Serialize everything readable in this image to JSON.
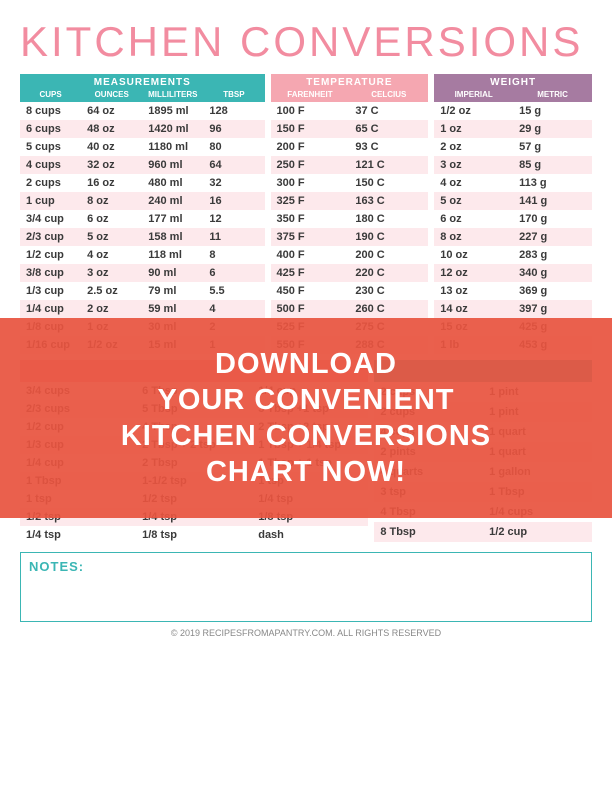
{
  "colors": {
    "title": "#f28ca0",
    "stripe": "#fde9ec",
    "meas_hdr": "#3bb6b4",
    "temp_hdr": "#f5a7b1",
    "wt_hdr": "#a67ba1",
    "overlay": "#e8543f",
    "overlay_alpha": "rgba(232,84,63,0.93)",
    "notes_border": "#3bb6b4",
    "notes_label": "#3bb6b4",
    "copyright": "#777777",
    "text": "#3a3a3a"
  },
  "title": "KITCHEN CONVERSIONS",
  "measurements": {
    "header": "MEASUREMENTS",
    "cols": [
      "CUPS",
      "OUNCES",
      "MILLILITERS",
      "TBSP"
    ],
    "rows": [
      [
        "8 cups",
        "64 oz",
        "1895 ml",
        "128"
      ],
      [
        "6 cups",
        "48 oz",
        "1420 ml",
        "96"
      ],
      [
        "5 cups",
        "40 oz",
        "1180 ml",
        "80"
      ],
      [
        "4 cups",
        "32 oz",
        "960 ml",
        "64"
      ],
      [
        "2 cups",
        "16 oz",
        "480 ml",
        "32"
      ],
      [
        "1 cup",
        "8 oz",
        "240 ml",
        "16"
      ],
      [
        "3/4 cup",
        "6 oz",
        "177 ml",
        "12"
      ],
      [
        "2/3 cup",
        "5 oz",
        "158 ml",
        "11"
      ],
      [
        "1/2 cup",
        "4 oz",
        "118 ml",
        "8"
      ],
      [
        "3/8 cup",
        "3 oz",
        "90 ml",
        "6"
      ],
      [
        "1/3 cup",
        "2.5 oz",
        "79 ml",
        "5.5"
      ],
      [
        "1/4 cup",
        "2 oz",
        "59 ml",
        "4"
      ],
      [
        "1/8 cup",
        "1 oz",
        "30 ml",
        "2"
      ],
      [
        "1/16 cup",
        "1/2 oz",
        "15 ml",
        "1"
      ]
    ]
  },
  "temperature": {
    "header": "TEMPERATURE",
    "cols": [
      "FARENHEIT",
      "CELCIUS"
    ],
    "rows": [
      [
        "100 F",
        "37 C"
      ],
      [
        "150 F",
        "65 C"
      ],
      [
        "200 F",
        "93 C"
      ],
      [
        "250 F",
        "121 C"
      ],
      [
        "300 F",
        "150 C"
      ],
      [
        "325 F",
        "163 C"
      ],
      [
        "350 F",
        "180 C"
      ],
      [
        "375 F",
        "190 C"
      ],
      [
        "400 F",
        "200 C"
      ],
      [
        "425 F",
        "220 C"
      ],
      [
        "450 F",
        "230 C"
      ],
      [
        "500 F",
        "260 C"
      ],
      [
        "525 F",
        "275 C"
      ],
      [
        "550 F",
        "288 C"
      ]
    ]
  },
  "weight": {
    "header": "WEIGHT",
    "cols": [
      "IMPERIAL",
      "METRIC"
    ],
    "rows": [
      [
        "1/2 oz",
        "15 g"
      ],
      [
        "1 oz",
        "29 g"
      ],
      [
        "2 oz",
        "57 g"
      ],
      [
        "3 oz",
        "85 g"
      ],
      [
        "4 oz",
        "113 g"
      ],
      [
        "5 oz",
        "141 g"
      ],
      [
        "6 oz",
        "170 g"
      ],
      [
        "8 oz",
        "227 g"
      ],
      [
        "10 oz",
        "283 g"
      ],
      [
        "12 oz",
        "340 g"
      ],
      [
        "13 oz",
        "369 g"
      ],
      [
        "14 oz",
        "397 g"
      ],
      [
        "15 oz",
        "425 g"
      ],
      [
        "1 lb",
        "453 g"
      ]
    ]
  },
  "spoons": {
    "header": "",
    "cols": [
      "",
      "",
      ""
    ],
    "rows": [
      [
        "3/4 cups",
        "6 Tbsp",
        "1/4 cup"
      ],
      [
        "2/3 cups",
        "5 Tbsp",
        "3 Tbsp +1 tsp"
      ],
      [
        "1/2 cup",
        "4 Tbsp",
        "2 Tbsp +2 tsp"
      ],
      [
        "1/3 cup",
        "2 Tbsp + 2 tsp",
        "1 Tbsp + 1/4 tsp"
      ],
      [
        "1/4 cup",
        "2 Tbsp",
        "1 Tbsp + 1 tsp"
      ],
      [
        "1 Tbsp",
        "1-1/2 tsp",
        "1 tsp"
      ],
      [
        "1 tsp",
        "1/2 tsp",
        "1/4 tsp"
      ],
      [
        "1/2 tsp",
        "1/4 tsp",
        "1/8 tsp"
      ],
      [
        "1/4 tsp",
        "1/8 tsp",
        "dash"
      ]
    ]
  },
  "liquids": {
    "header": "",
    "cols": [
      "",
      ""
    ],
    "rows": [
      [
        "2 cups",
        "1 pint"
      ],
      [
        "2 cups",
        "1 pint"
      ],
      [
        "4 cups",
        "1 quart"
      ],
      [
        "2 pints",
        "1 quart"
      ],
      [
        "4 quarts",
        "1 gallon"
      ],
      [
        "3 tsp",
        "1 Tbsp"
      ],
      [
        "4 Tbsp",
        "1/4 cups"
      ],
      [
        "8 Tbsp",
        "1/2 cup"
      ]
    ]
  },
  "notes_label": "NOTES:",
  "copyright": "© 2019 RECIPESFROMAPANTRY.COM. ALL RIGHTS RESERVED",
  "overlay_text": "DOWNLOAD\nYOUR CONVENIENT\nKITCHEN CONVERSIONS\nCHART NOW!"
}
